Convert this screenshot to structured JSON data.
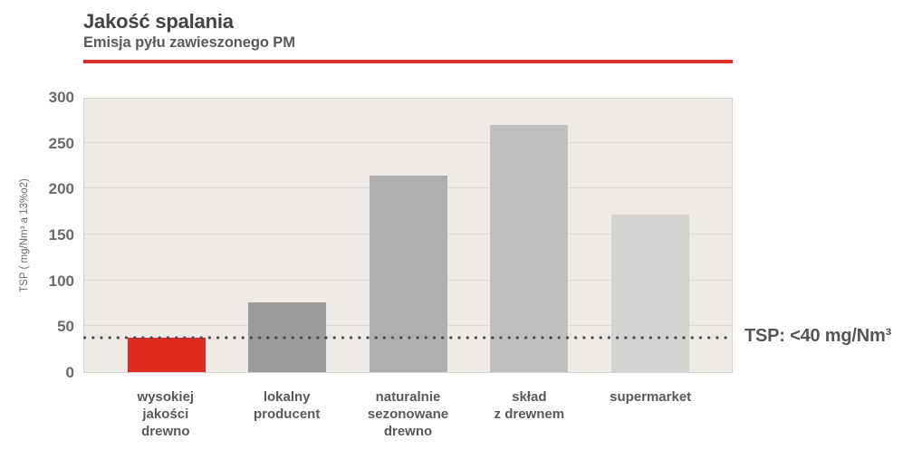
{
  "header": {
    "title": "Jakość spalania",
    "subtitle": "Emisja pyłu zawieszonego PM",
    "accent_color": "#d8322b"
  },
  "chart_data": {
    "type": "bar",
    "title": "Jakość spalania — Emisja pyłu zawieszonego PM",
    "xlabel": "",
    "ylabel": "TSP ( mg/Nm³ a 13%o2)",
    "ylim": [
      0,
      300
    ],
    "yticks": [
      0,
      50,
      100,
      150,
      200,
      250,
      300
    ],
    "grid": true,
    "legend_position": "none",
    "categories": [
      "wysokiej\njakości\ndrewno",
      "lokalny\nproducent",
      "naturalnie\nsezonowane\ndrewno",
      "skład\nz drewnem",
      "supermarket"
    ],
    "values": [
      38,
      77,
      216,
      271,
      173
    ],
    "bar_colors": [
      "#e02a21",
      "#9b9b9b",
      "#afafaf",
      "#bfbfbf",
      "#d3d3d1"
    ],
    "plot_background": "#edeae7",
    "threshold": {
      "value": 38,
      "label": "TSP: <40 mg/Nm³",
      "line_style": "dotted",
      "line_color": "#4b4b4b"
    }
  }
}
